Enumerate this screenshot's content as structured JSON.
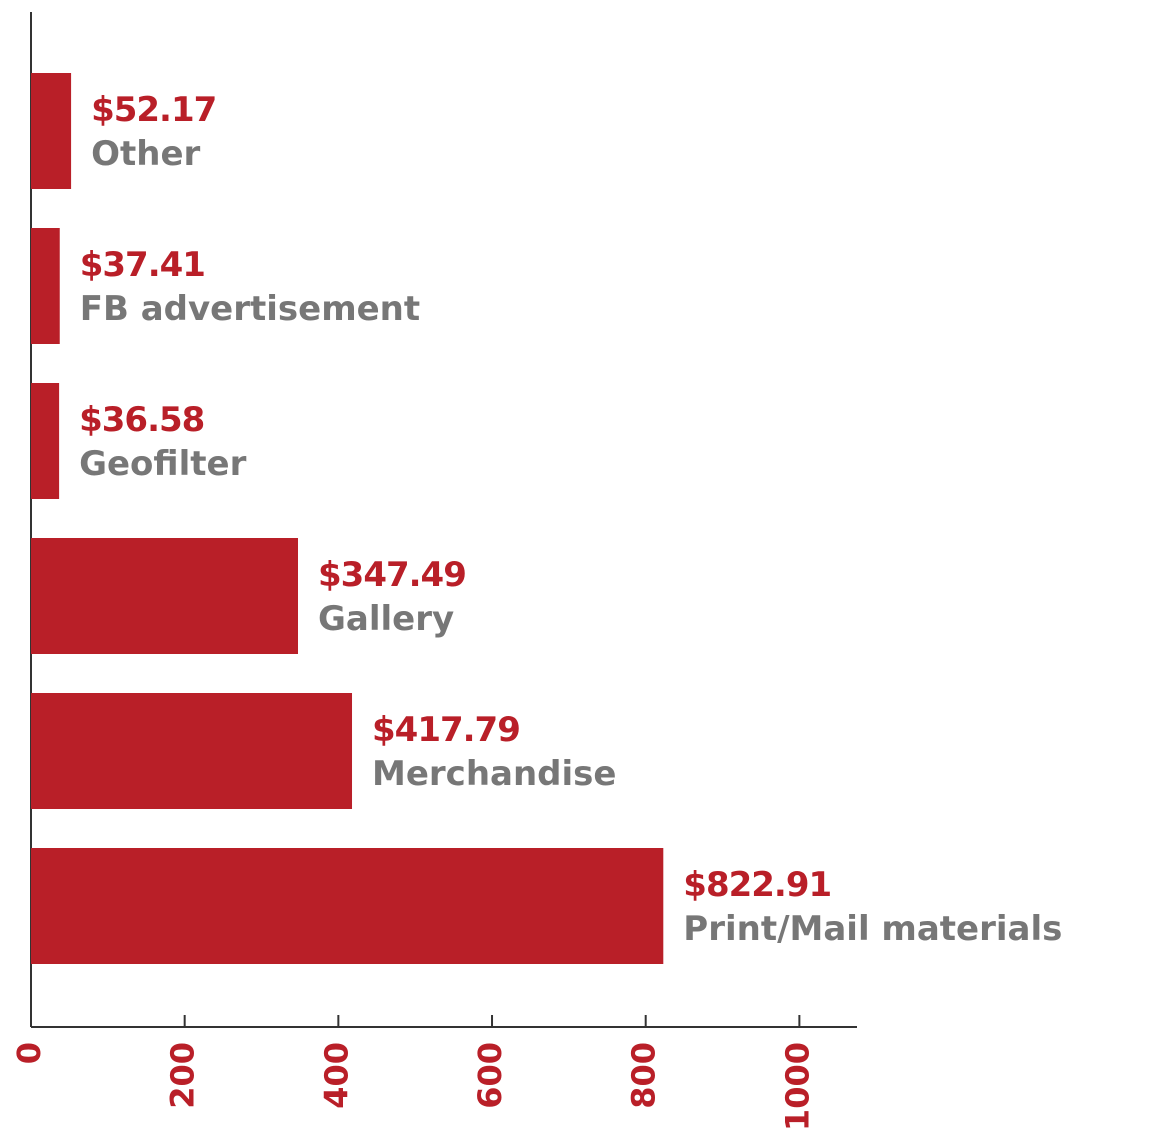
{
  "chart_data": {
    "type": "bar",
    "orientation": "horizontal",
    "categories": [
      "Other",
      "FB advertisement",
      "Geofilter",
      "Gallery",
      "Merchandise",
      "Print/Mail materials"
    ],
    "values": [
      52.17,
      37.41,
      36.58,
      347.49,
      417.79,
      822.91
    ],
    "value_labels": [
      "$52.17",
      "$37.41",
      "$36.58",
      "$347.49",
      "$417.79",
      "$822.91"
    ],
    "color": "#b91f28",
    "xlim": [
      0,
      1075
    ],
    "xticks": [
      0,
      200,
      400,
      600,
      800,
      1000
    ]
  }
}
